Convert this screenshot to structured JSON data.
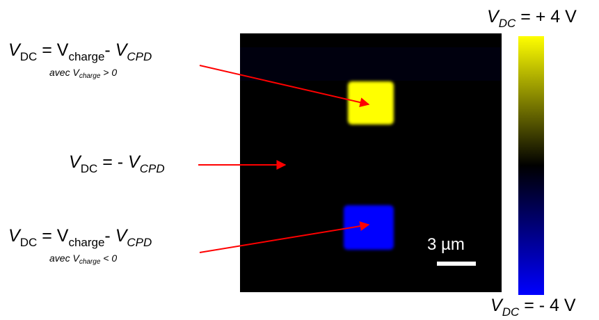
{
  "colorbar": {
    "top_symbol": "V",
    "top_sub": "DC",
    "top_value": " = + 4 V",
    "bottom_symbol": "V",
    "bottom_sub": "DC",
    "bottom_value": " = - 4 V",
    "color_max": "#ffff00",
    "color_mid": "#000000",
    "color_min": "#0000ff"
  },
  "image": {
    "background_color": "#000000",
    "scalebar_label": "3 µm"
  },
  "annotations": [
    {
      "symbol": "V",
      "symbol_sub": "DC",
      "equals": " =  ",
      "term1": "V",
      "term1_sub": "charge",
      "minus": "- ",
      "term2": "V",
      "term2_sub": "CPD",
      "note_prefix": "avec V",
      "note_sub": "charge",
      "note_suffix": " > 0",
      "target": "positive charge square (yellow)"
    },
    {
      "symbol": "V",
      "symbol_sub": "DC",
      "equals": " =  - ",
      "term2": "V",
      "term2_sub": "CPD",
      "target": "uncharged background"
    },
    {
      "symbol": "V",
      "symbol_sub": "DC",
      "equals": " =  ",
      "term1": "V",
      "term1_sub": "charge",
      "minus": "- ",
      "term2": "V",
      "term2_sub": "CPD",
      "note_prefix": "avec V",
      "note_sub": "charge",
      "note_suffix": " < 0",
      "target": "negative charge square (blue)"
    }
  ],
  "arrow_color": "#ff0000"
}
